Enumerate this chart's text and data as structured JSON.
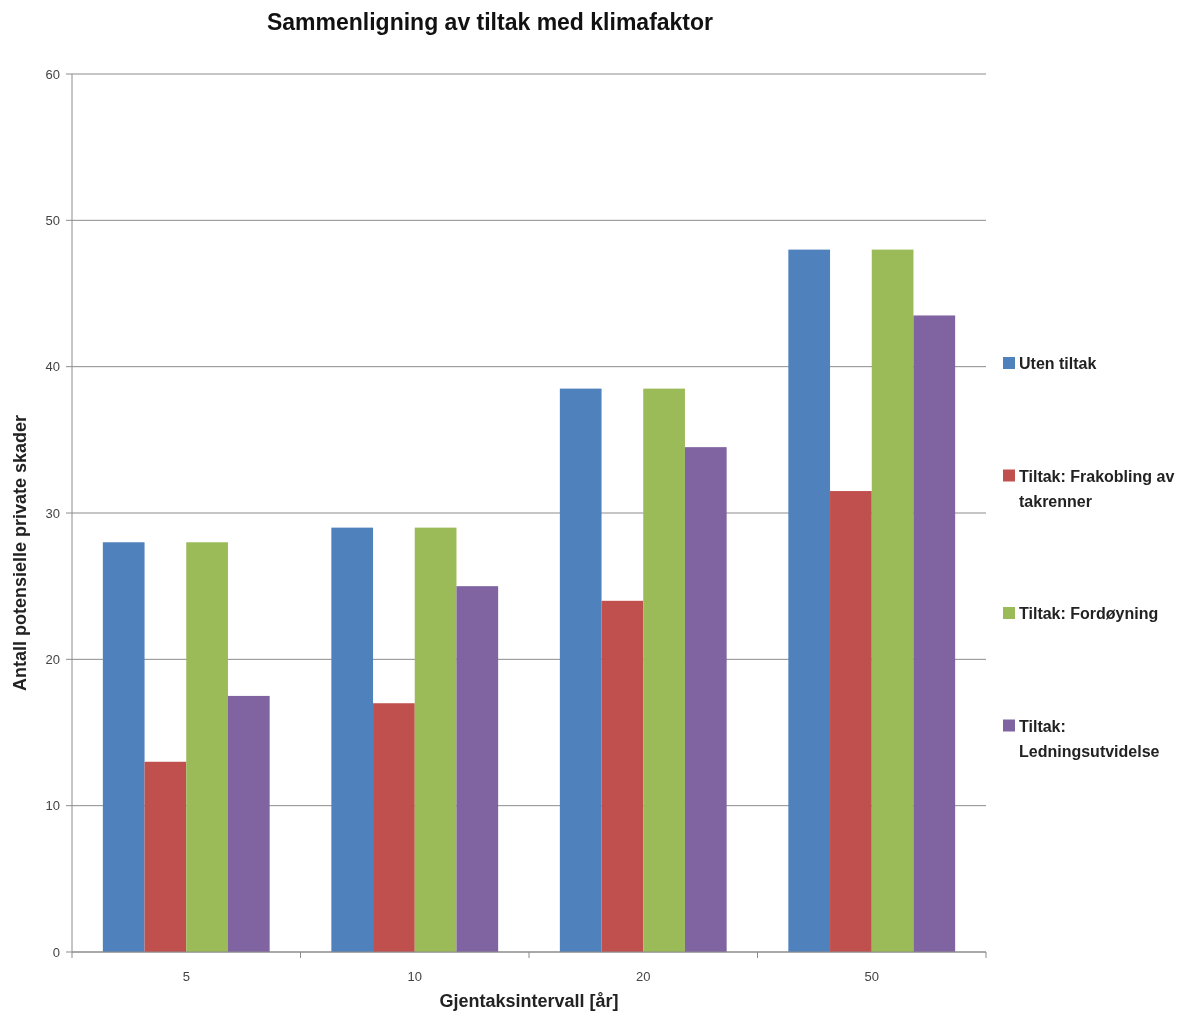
{
  "chart_data": {
    "type": "bar",
    "title": "Sammenligning av tiltak med klimafaktor",
    "xlabel": "Gjentaksintervall [år]",
    "ylabel": "Antall potensielle private skader",
    "categories": [
      "5",
      "10",
      "20",
      "50"
    ],
    "series": [
      {
        "name": "Uten tiltak",
        "color": "#4f81bd",
        "values": [
          28,
          29,
          38.5,
          48
        ]
      },
      {
        "name": "Tiltak: Frakobling av takrenner",
        "color": "#c0504d",
        "values": [
          13,
          17,
          24,
          31.5
        ]
      },
      {
        "name": "Tiltak: Fordøyning",
        "color": "#9bbb59",
        "values": [
          28,
          29,
          38.5,
          48
        ]
      },
      {
        "name": "Tiltak: Ledningsutvidelse",
        "color": "#8064a2",
        "values": [
          17.5,
          25,
          34.5,
          43.5
        ]
      }
    ],
    "ylim": [
      0,
      60
    ],
    "yticks": [
      0,
      10,
      20,
      30,
      40,
      50,
      60
    ],
    "grid": "y",
    "legend": "right"
  }
}
